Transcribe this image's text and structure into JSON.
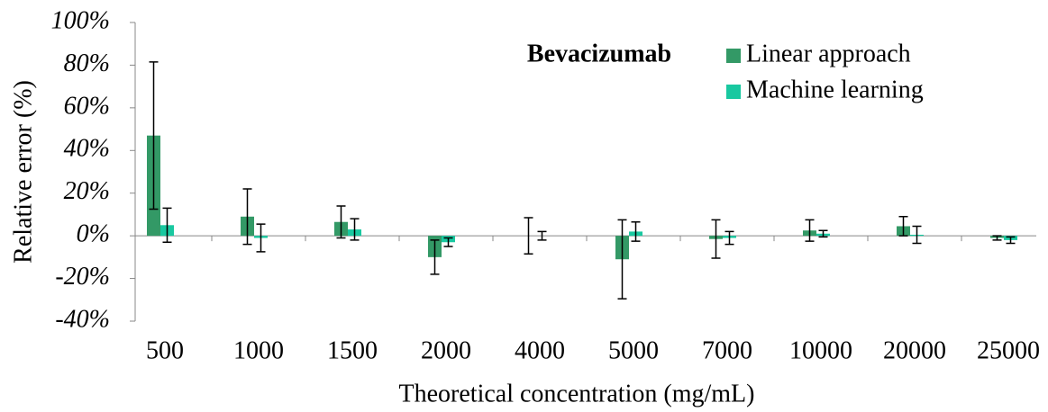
{
  "chart_data": {
    "type": "bar",
    "title": "Bevacizumab",
    "x_label": "Theoretical concentration (mg/mL)",
    "y_label": "Relative error (%)",
    "categories": [
      "500",
      "1000",
      "1500",
      "2000",
      "4000",
      "5000",
      "7000",
      "10000",
      "20000",
      "25000"
    ],
    "series": [
      {
        "name": "Linear approach",
        "color": "#339966",
        "values": [
          47,
          9,
          6.5,
          -10,
          0,
          -11,
          -1.5,
          2.5,
          4.5,
          -1
        ],
        "errors": [
          34.5,
          13,
          7.5,
          8,
          8.5,
          18.5,
          9,
          5,
          4.5,
          1
        ]
      },
      {
        "name": "Machine learning",
        "color": "#19c8a0",
        "values": [
          5,
          -1,
          3,
          -3,
          0,
          2,
          -1,
          1,
          0.5,
          -2
        ],
        "errors": [
          8,
          6.5,
          5,
          2,
          2,
          4.5,
          3,
          1.5,
          4,
          1.5
        ]
      }
    ],
    "ylim": [
      -40,
      100
    ],
    "yticks": [
      {
        "value": -40,
        "label": "-40%"
      },
      {
        "value": -20,
        "label": "-20%"
      },
      {
        "value": 0,
        "label": "0%"
      },
      {
        "value": 20,
        "label": "20%"
      },
      {
        "value": 40,
        "label": "40%"
      },
      {
        "value": 60,
        "label": "60%"
      },
      {
        "value": 80,
        "label": "80%"
      },
      {
        "value": 100,
        "label": "100%"
      }
    ],
    "grid": false
  }
}
